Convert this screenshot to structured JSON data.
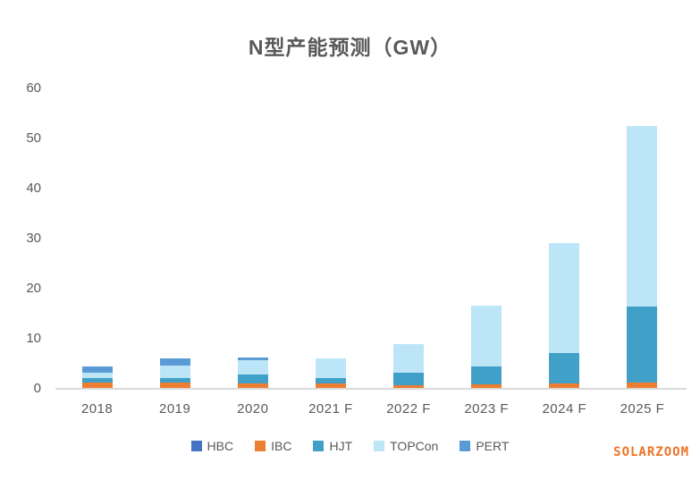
{
  "watermark": {
    "text": "SOLARZOOM"
  },
  "colors": {
    "title_text": "#595959",
    "axis_text": "#595959",
    "axis_line": "#d9d9d9",
    "watermark_text": "#ed7224"
  },
  "chart_data": {
    "type": "bar",
    "stacked": true,
    "title": "N型产能预测（GW）",
    "xlabel": "",
    "ylabel": "",
    "categories": [
      "2018",
      "2019",
      "2020",
      "2021 F",
      "2022 F",
      "2023 F",
      "2024 F",
      "2025 F"
    ],
    "series": [
      {
        "name": "HBC",
        "color": "#4472c4",
        "values": [
          0,
          0,
          0,
          0,
          0,
          0,
          0,
          0
        ]
      },
      {
        "name": "IBC",
        "color": "#ed7d31",
        "values": [
          1.2,
          1.2,
          1.0,
          1.0,
          0.7,
          0.9,
          1.1,
          1.3
        ]
      },
      {
        "name": "HJT",
        "color": "#41a0c8",
        "values": [
          0.9,
          1.0,
          1.8,
          1.2,
          2.5,
          3.6,
          6.0,
          15.1
        ]
      },
      {
        "name": "TOPCon",
        "color": "#bde5f8",
        "values": [
          1.2,
          2.5,
          3.0,
          3.8,
          5.7,
          12.2,
          22.0,
          36.1
        ]
      },
      {
        "name": "PERT",
        "color": "#5b9bd5",
        "values": [
          1.2,
          1.3,
          0.5,
          0,
          0,
          0,
          0,
          0
        ]
      }
    ],
    "ylim": [
      0,
      60
    ],
    "yticks": [
      0,
      10,
      20,
      30,
      40,
      50,
      60
    ],
    "grid": false,
    "legend_position": "bottom"
  }
}
